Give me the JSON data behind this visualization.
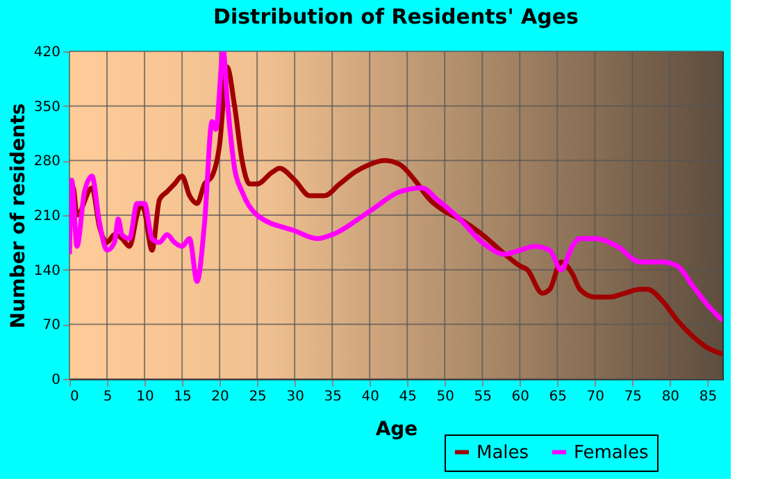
{
  "chart_data": {
    "type": "line",
    "title": "Distribution of Residents' Ages",
    "xlabel": "Age",
    "ylabel": "Number of residents",
    "xlim": [
      0,
      87
    ],
    "xticks": [
      0,
      5,
      10,
      15,
      20,
      25,
      30,
      35,
      40,
      45,
      50,
      55,
      60,
      65,
      70,
      75,
      80,
      85
    ],
    "ylim": [
      0,
      420
    ],
    "yticks": [
      0,
      70,
      140,
      210,
      280,
      350,
      420
    ],
    "grid": true,
    "legend": "bottom right",
    "series": [
      {
        "name": "Males",
        "color": "#a00000",
        "x": [
          0,
          0.5,
          1,
          3,
          4,
          5,
          6,
          7,
          8,
          9,
          9.5,
          10,
          11,
          12,
          13,
          14,
          15,
          16,
          17,
          18,
          19,
          20,
          21,
          22,
          23,
          24,
          25,
          27,
          28,
          30,
          32,
          34,
          36,
          38,
          40,
          42,
          44,
          46,
          48,
          50,
          52,
          55,
          58,
          60,
          61,
          63,
          64,
          65.5,
          67,
          68,
          70,
          72,
          74,
          76,
          77,
          79,
          81,
          83,
          85,
          87
        ],
        "values": [
          210,
          245,
          210,
          245,
          195,
          175,
          185,
          180,
          170,
          210,
          225,
          215,
          165,
          230,
          240,
          250,
          260,
          235,
          225,
          250,
          260,
          300,
          400,
          350,
          280,
          250,
          250,
          265,
          270,
          255,
          235,
          235,
          250,
          265,
          275,
          280,
          275,
          255,
          230,
          215,
          205,
          185,
          160,
          145,
          140,
          110,
          115,
          150,
          135,
          115,
          105,
          105,
          110,
          115,
          115,
          100,
          75,
          55,
          40,
          32
        ]
      },
      {
        "name": "Females",
        "color": "#ff00ff",
        "x": [
          0,
          0.3,
          1,
          2,
          3,
          4,
          5,
          6,
          6.5,
          7,
          8,
          9,
          10,
          11,
          12,
          13,
          14,
          15,
          16,
          17,
          18,
          19,
          19.5,
          20.5,
          21,
          22,
          23,
          25,
          30,
          33,
          35,
          40,
          44,
          47,
          49,
          52,
          55,
          58,
          60,
          62,
          64,
          65.5,
          67,
          68,
          70,
          73,
          76,
          79,
          81,
          83,
          85,
          87
        ],
        "values": [
          160,
          255,
          170,
          240,
          260,
          200,
          165,
          175,
          205,
          185,
          180,
          225,
          225,
          180,
          175,
          185,
          175,
          170,
          180,
          125,
          200,
          330,
          320,
          420,
          360,
          270,
          240,
          210,
          190,
          180,
          185,
          215,
          240,
          245,
          230,
          205,
          175,
          160,
          165,
          170,
          165,
          140,
          170,
          180,
          180,
          170,
          150,
          150,
          145,
          120,
          95,
          75
        ]
      }
    ]
  }
}
